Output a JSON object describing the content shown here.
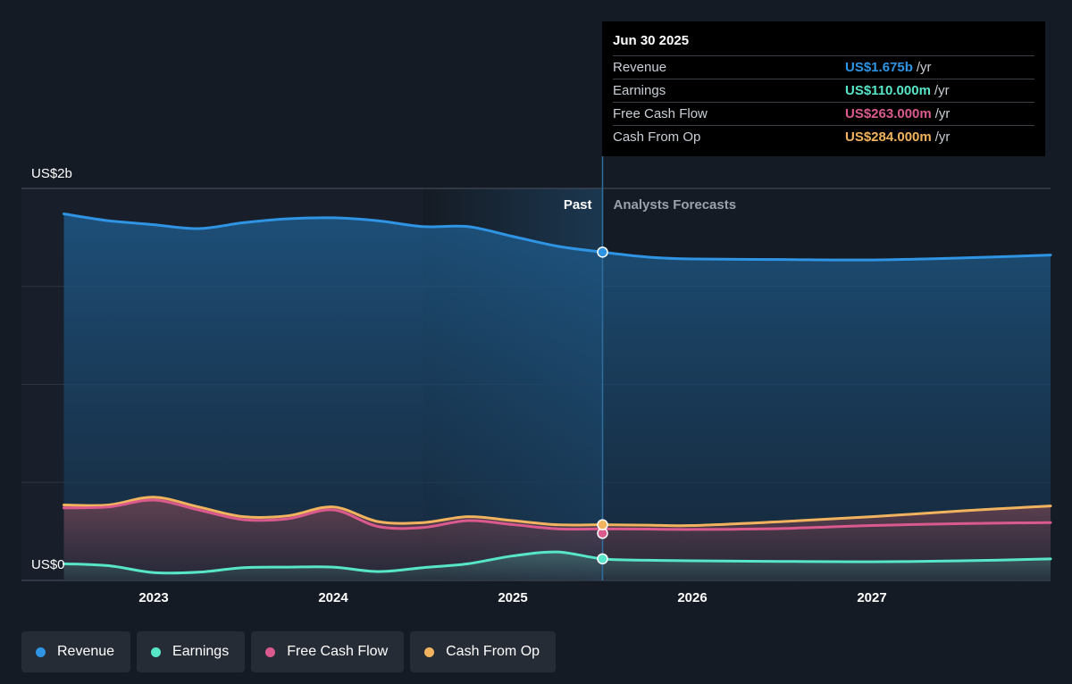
{
  "tooltip": {
    "date": "Jun 30 2025",
    "rows": [
      {
        "label": "Revenue",
        "value": "US$1.675b",
        "unit": "/yr",
        "color": "#2e94e3"
      },
      {
        "label": "Earnings",
        "value": "US$110.000m",
        "unit": "/yr",
        "color": "#57e6c8"
      },
      {
        "label": "Free Cash Flow",
        "value": "US$263.000m",
        "unit": "/yr",
        "color": "#db5a8e"
      },
      {
        "label": "Cash From Op",
        "value": "US$284.000m",
        "unit": "/yr",
        "color": "#f2b35e"
      }
    ]
  },
  "legend": [
    {
      "label": "Revenue",
      "color": "#2e94e3"
    },
    {
      "label": "Earnings",
      "color": "#57e6c8"
    },
    {
      "label": "Free Cash Flow",
      "color": "#db5a8e"
    },
    {
      "label": "Cash From Op",
      "color": "#f2b35e"
    }
  ],
  "chart_data": {
    "type": "area",
    "ylabel_top": "US$2b",
    "ylabel_bottom": "US$0",
    "ylim": [
      0,
      2000
    ],
    "y_unit": "US$m",
    "x_ticks": [
      "2023",
      "2024",
      "2025",
      "2026",
      "2027"
    ],
    "x_tick_values": [
      2023,
      2024,
      2025,
      2026,
      2027
    ],
    "xlim": [
      2022.25,
      2028.0
    ],
    "past_label": "Past",
    "forecast_label": "Analysts Forecasts",
    "divider_x": 2025.5,
    "highlight_start_x": 2024.5,
    "grid": true,
    "series": [
      {
        "name": "Revenue",
        "color": "#2e94e3",
        "x": [
          2022.5,
          2022.75,
          2023.0,
          2023.25,
          2023.5,
          2023.75,
          2024.0,
          2024.25,
          2024.5,
          2024.75,
          2025.0,
          2025.25,
          2025.5,
          2025.75,
          2026.0,
          2026.5,
          2027.0,
          2027.5,
          2028.0
        ],
        "y": [
          1870,
          1835,
          1815,
          1795,
          1825,
          1845,
          1850,
          1835,
          1805,
          1805,
          1755,
          1705,
          1675,
          1650,
          1640,
          1637,
          1635,
          1645,
          1660
        ]
      },
      {
        "name": "Earnings",
        "color": "#57e6c8",
        "x": [
          2022.5,
          2022.75,
          2023.0,
          2023.25,
          2023.5,
          2023.75,
          2024.0,
          2024.25,
          2024.5,
          2024.75,
          2025.0,
          2025.25,
          2025.5,
          2025.75,
          2026.0,
          2026.5,
          2027.0,
          2027.5,
          2028.0
        ],
        "y": [
          85,
          75,
          40,
          42,
          65,
          68,
          68,
          45,
          65,
          85,
          125,
          145,
          110,
          103,
          100,
          97,
          95,
          100,
          110
        ]
      },
      {
        "name": "Free Cash Flow",
        "color": "#db5a8e",
        "x": [
          2022.5,
          2022.75,
          2023.0,
          2023.25,
          2023.5,
          2023.75,
          2024.0,
          2024.25,
          2024.5,
          2024.75,
          2025.0,
          2025.25,
          2025.5,
          2025.75,
          2026.0,
          2026.5,
          2027.0,
          2027.5,
          2028.0
        ],
        "y": [
          370,
          375,
          410,
          360,
          310,
          315,
          360,
          275,
          270,
          305,
          285,
          263,
          263,
          262,
          260,
          265,
          280,
          290,
          295
        ]
      },
      {
        "name": "Cash From Op",
        "color": "#f2b35e",
        "x": [
          2022.5,
          2022.75,
          2023.0,
          2023.25,
          2023.5,
          2023.75,
          2024.0,
          2024.25,
          2024.5,
          2024.75,
          2025.0,
          2025.25,
          2025.5,
          2025.75,
          2026.0,
          2026.5,
          2027.0,
          2027.5,
          2028.0
        ],
        "y": [
          385,
          385,
          425,
          375,
          325,
          330,
          375,
          300,
          295,
          325,
          305,
          284,
          284,
          282,
          280,
          300,
          325,
          355,
          380
        ]
      }
    ]
  }
}
